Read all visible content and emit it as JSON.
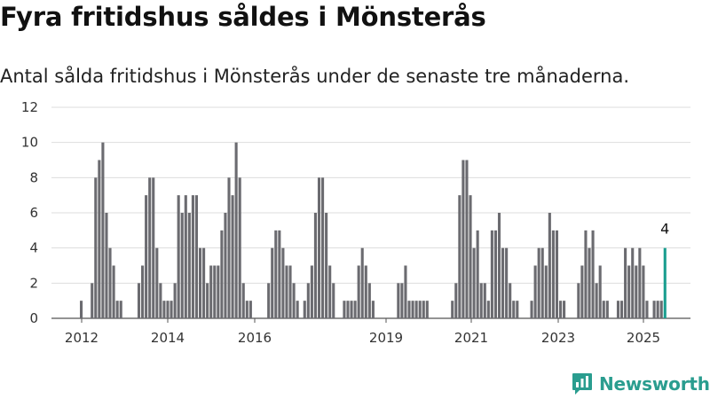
{
  "header": {
    "title": "Fyra fritidshus såldes i Mönsterås",
    "subtitle": "Antal sålda fritidshus i Mönsterås under de senaste tre månaderna."
  },
  "brand": {
    "name": "Newsworthy",
    "color": "#2a9d8f",
    "icon": "newsworthy-logo-icon"
  },
  "chart_data": {
    "type": "bar",
    "title": "Fyra fritidshus såldes i Mönsterås",
    "subtitle": "Antal sålda fritidshus i Mönsterås under de senaste tre månaderna.",
    "xlabel": "",
    "ylabel": "",
    "ylim": [
      0,
      12
    ],
    "yticks": [
      0,
      2,
      4,
      6,
      8,
      10,
      12
    ],
    "xticks": [
      "2012",
      "2014",
      "2016",
      "2019",
      "2021",
      "2023",
      "2025"
    ],
    "grid": true,
    "legend": "none",
    "bar_color": "#6b6b70",
    "highlight_color": "#1a9e8f",
    "highlight_label": "4",
    "series": [
      {
        "values": [
          1,
          0,
          0,
          2,
          8,
          9,
          10,
          6,
          4,
          3,
          1,
          1,
          0,
          0,
          0,
          0,
          2,
          3,
          7,
          8,
          8,
          4,
          2,
          1,
          1,
          1,
          2,
          7,
          6,
          7,
          6,
          7,
          7,
          4,
          4,
          2,
          3,
          3,
          3,
          5,
          6,
          8,
          7,
          10,
          8,
          2,
          1,
          1,
          0,
          0,
          0,
          0,
          2,
          4,
          5,
          5,
          4,
          3,
          3,
          2,
          1,
          0,
          1,
          2,
          3,
          6,
          8,
          8,
          6,
          3,
          2,
          0,
          0,
          1,
          1,
          1,
          1,
          3,
          4,
          3,
          2,
          1,
          0,
          0,
          0,
          0,
          0,
          0,
          2,
          2,
          3,
          1,
          1,
          1,
          1,
          1,
          1,
          0,
          0,
          0,
          0,
          0,
          0,
          1,
          2,
          7,
          9,
          9,
          7,
          4,
          5,
          2,
          2,
          1,
          5,
          5,
          6,
          4,
          4,
          2,
          1,
          1,
          0,
          0,
          0,
          1,
          3,
          4,
          4,
          3,
          6,
          5,
          5,
          1,
          1,
          0,
          0,
          0,
          2,
          3,
          5,
          4,
          5,
          2,
          3,
          1,
          1,
          0,
          0,
          1,
          1,
          4,
          3,
          4,
          3,
          4,
          3,
          1,
          0,
          1,
          1,
          1,
          4
        ]
      }
    ]
  }
}
